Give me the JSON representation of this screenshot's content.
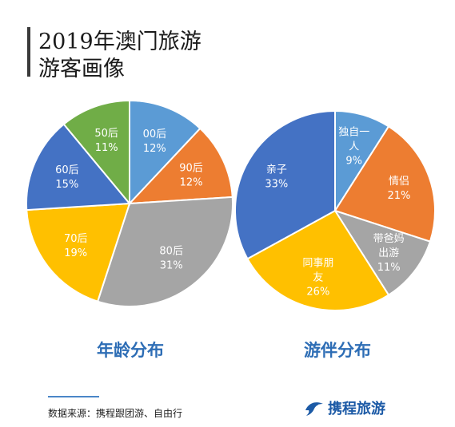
{
  "header": {
    "title_line1": "2019年澳门旅游",
    "title_line2": "游客画像"
  },
  "chart_data": [
    {
      "type": "pie",
      "title": "年龄分布",
      "slices": [
        {
          "label": "00后",
          "value": 12,
          "display": "12%",
          "color": "#5b9bd5"
        },
        {
          "label": "90后",
          "value": 12,
          "display": "12%",
          "color": "#ed7d31"
        },
        {
          "label": "80后",
          "value": 31,
          "display": "31%",
          "color": "#a5a5a5"
        },
        {
          "label": "70后",
          "value": 19,
          "display": "19%",
          "color": "#ffc000"
        },
        {
          "label": "60后",
          "value": 15,
          "display": "15%",
          "color": "#4472c4"
        },
        {
          "label": "50后",
          "value": 11,
          "display": "11%",
          "color": "#70ad47"
        }
      ]
    },
    {
      "type": "pie",
      "title": "游伴分布",
      "slices": [
        {
          "label": "独自一人",
          "value": 9,
          "display": "9%",
          "color": "#5b9bd5"
        },
        {
          "label": "情侣",
          "value": 21,
          "display": "21%",
          "color": "#ed7d31"
        },
        {
          "label": "带爸妈出游",
          "value": 11,
          "display": "11%",
          "color": "#a5a5a5"
        },
        {
          "label": "同事朋友",
          "value": 26,
          "display": "26%",
          "color": "#ffc000"
        },
        {
          "label": "亲子",
          "value": 33,
          "display": "33%",
          "color": "#4472c4"
        }
      ]
    }
  ],
  "footer": {
    "source": "数据来源：携程跟团游、自由行",
    "logo_text": "携程旅游"
  }
}
